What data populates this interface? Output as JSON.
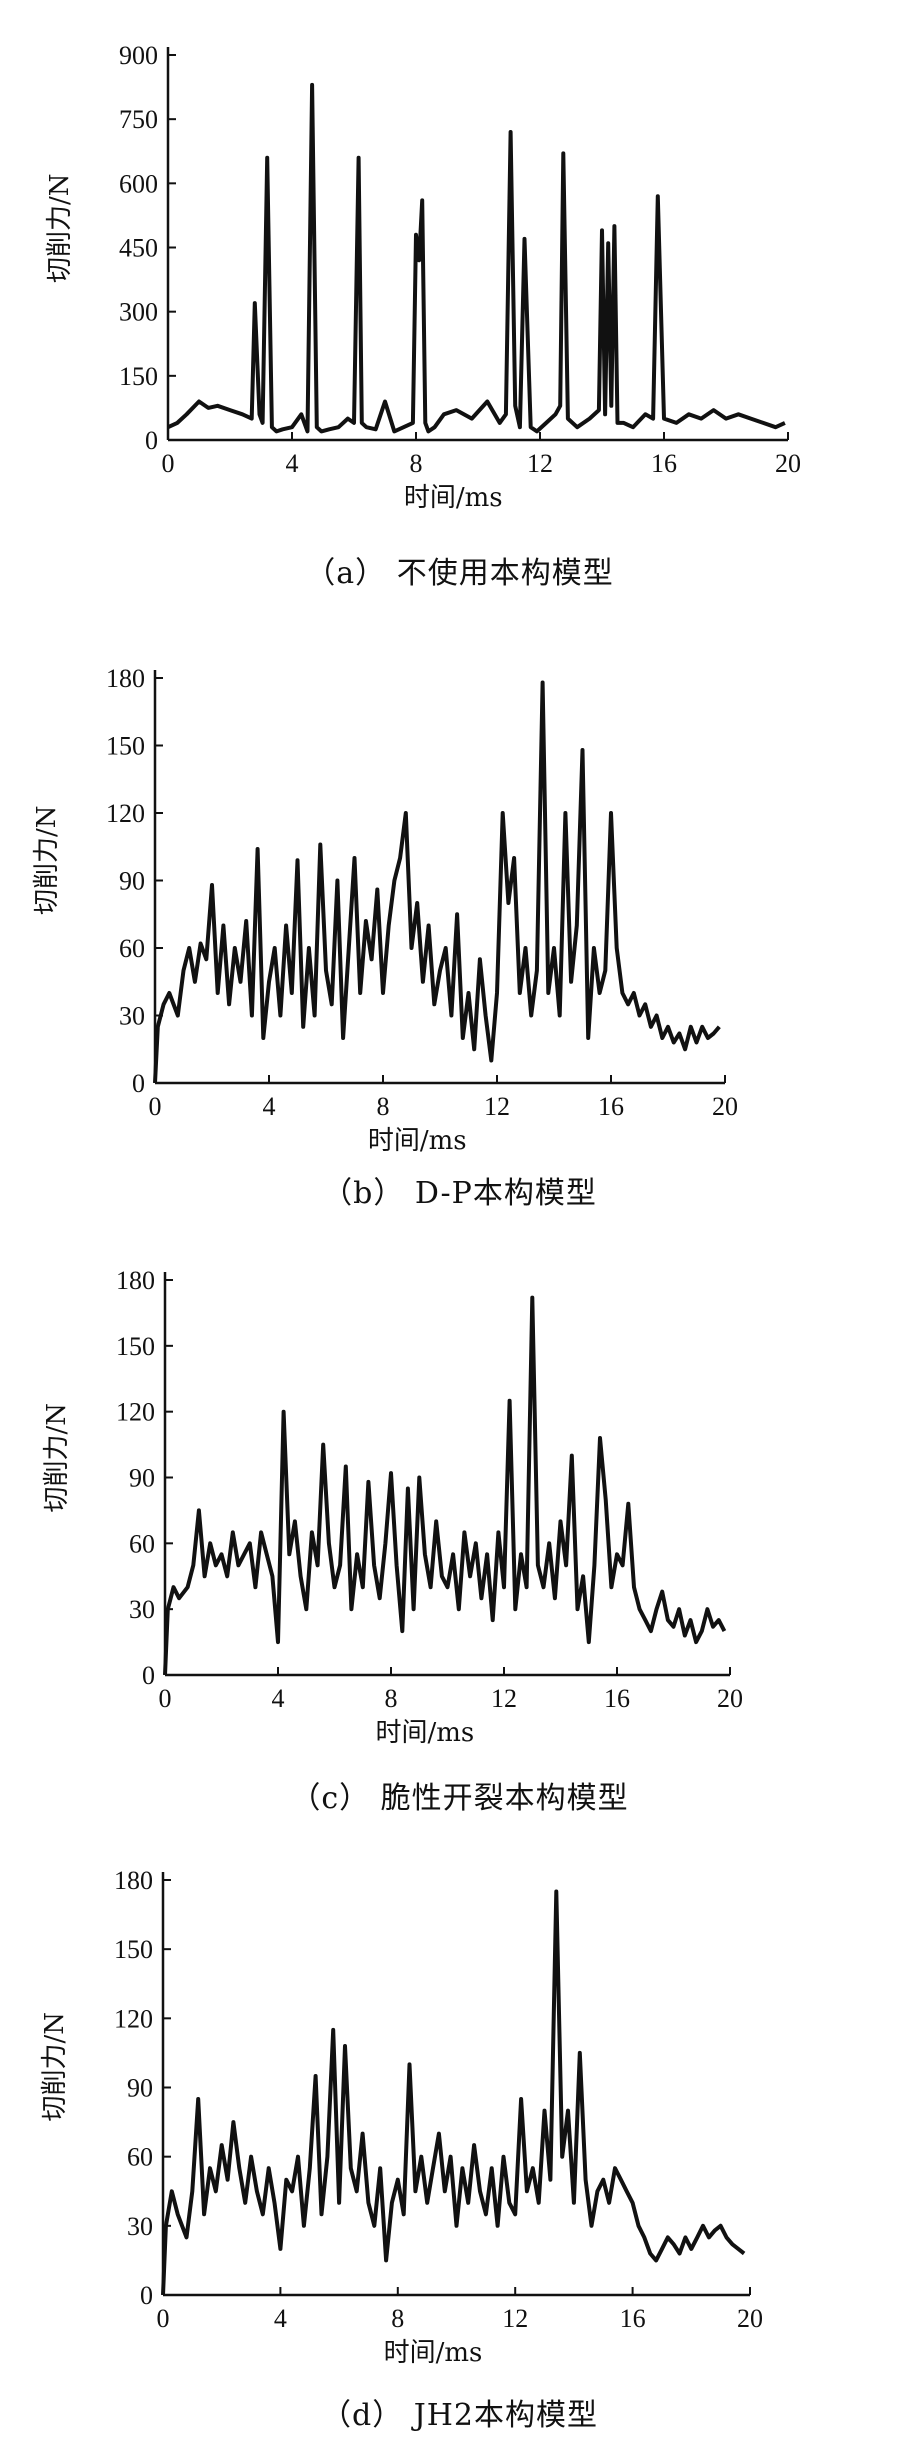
{
  "chart_data": [
    {
      "type": "line",
      "caption": "（a） 不使用本构模型",
      "xlabel": "时间/ms",
      "ylabel": "切削力/N",
      "xlim": [
        0,
        20
      ],
      "ylim": [
        0,
        900
      ],
      "xticks": [
        "0",
        "4",
        "8",
        "12",
        "16",
        "20"
      ],
      "yticks": [
        "0",
        "150",
        "300",
        "450",
        "600",
        "750",
        "900"
      ],
      "series": [
        {
          "x": [
            0,
            0.3,
            0.6,
            1.0,
            1.3,
            1.6,
            2.0,
            2.4,
            2.7,
            2.8,
            2.95,
            3.05,
            3.2,
            3.35,
            3.5,
            3.7,
            4.0,
            4.3,
            4.5,
            4.65,
            4.8,
            4.95,
            5.2,
            5.5,
            5.8,
            6.0,
            6.15,
            6.25,
            6.4,
            6.7,
            7.0,
            7.3,
            7.6,
            7.9,
            8.0,
            8.1,
            8.2,
            8.3,
            8.4,
            8.6,
            8.9,
            9.3,
            9.8,
            10.3,
            10.7,
            10.9,
            11.05,
            11.2,
            11.35,
            11.5,
            11.7,
            11.9,
            12.2,
            12.5,
            12.65,
            12.75,
            12.9,
            13.2,
            13.6,
            13.9,
            14.0,
            14.1,
            14.2,
            14.3,
            14.4,
            14.5,
            14.7,
            15.0,
            15.4,
            15.65,
            15.8,
            16.0,
            16.4,
            16.8,
            17.2,
            17.6,
            18.0,
            18.4,
            18.8,
            19.2,
            19.6,
            19.9
          ],
          "y": [
            30,
            40,
            60,
            90,
            75,
            80,
            70,
            60,
            50,
            320,
            60,
            40,
            660,
            30,
            20,
            25,
            30,
            60,
            20,
            830,
            30,
            20,
            25,
            30,
            50,
            40,
            660,
            40,
            30,
            25,
            90,
            20,
            30,
            40,
            480,
            420,
            560,
            40,
            20,
            30,
            60,
            70,
            50,
            90,
            40,
            60,
            720,
            80,
            30,
            470,
            30,
            20,
            40,
            60,
            80,
            670,
            50,
            30,
            50,
            70,
            490,
            60,
            460,
            80,
            500,
            40,
            40,
            30,
            60,
            50,
            570,
            50,
            40,
            60,
            50,
            70,
            50,
            60,
            50,
            40,
            30,
            40
          ]
        }
      ]
    },
    {
      "type": "line",
      "caption": "（b） D-P本构模型",
      "xlabel": "时间/ms",
      "ylabel": "切削力/N",
      "xlim": [
        0,
        20
      ],
      "ylim": [
        0,
        180
      ],
      "xticks": [
        "0",
        "4",
        "8",
        "12",
        "16",
        "20"
      ],
      "yticks": [
        "0",
        "30",
        "60",
        "90",
        "120",
        "150",
        "180"
      ],
      "series": [
        {
          "x": [
            0,
            0.1,
            0.3,
            0.5,
            0.8,
            1.0,
            1.2,
            1.4,
            1.6,
            1.8,
            2.0,
            2.2,
            2.4,
            2.6,
            2.8,
            3.0,
            3.2,
            3.4,
            3.6,
            3.8,
            4.0,
            4.2,
            4.4,
            4.6,
            4.8,
            5.0,
            5.2,
            5.4,
            5.6,
            5.8,
            6.0,
            6.2,
            6.4,
            6.6,
            6.8,
            7.0,
            7.2,
            7.4,
            7.6,
            7.8,
            8.0,
            8.2,
            8.4,
            8.6,
            8.8,
            9.0,
            9.2,
            9.4,
            9.6,
            9.8,
            10.0,
            10.2,
            10.4,
            10.6,
            10.8,
            11.0,
            11.2,
            11.4,
            11.6,
            11.8,
            12.0,
            12.2,
            12.4,
            12.6,
            12.8,
            13.0,
            13.2,
            13.4,
            13.6,
            13.8,
            14.0,
            14.2,
            14.4,
            14.6,
            14.8,
            15.0,
            15.2,
            15.4,
            15.6,
            15.8,
            16.0,
            16.2,
            16.4,
            16.6,
            16.8,
            17.0,
            17.2,
            17.4,
            17.6,
            17.8,
            18.0,
            18.2,
            18.4,
            18.6,
            18.8,
            19.0,
            19.2,
            19.4,
            19.6,
            19.8
          ],
          "y": [
            0,
            25,
            35,
            40,
            30,
            50,
            60,
            45,
            62,
            55,
            88,
            40,
            70,
            35,
            60,
            45,
            72,
            30,
            104,
            20,
            45,
            60,
            30,
            70,
            40,
            99,
            25,
            60,
            30,
            106,
            50,
            35,
            90,
            20,
            60,
            100,
            40,
            72,
            55,
            86,
            40,
            70,
            90,
            100,
            120,
            60,
            80,
            45,
            70,
            35,
            50,
            60,
            30,
            75,
            20,
            40,
            15,
            55,
            30,
            10,
            40,
            120,
            80,
            100,
            40,
            60,
            30,
            50,
            178,
            40,
            60,
            30,
            120,
            45,
            70,
            148,
            20,
            60,
            40,
            50,
            120,
            60,
            40,
            35,
            40,
            30,
            35,
            25,
            30,
            20,
            25,
            18,
            22,
            15,
            25,
            18,
            25,
            20,
            22,
            25
          ]
        }
      ]
    },
    {
      "type": "line",
      "caption": "（c） 脆性开裂本构模型",
      "xlabel": "时间/ms",
      "ylabel": "切削力/N",
      "xlim": [
        0,
        20
      ],
      "ylim": [
        0,
        180
      ],
      "xticks": [
        "0",
        "4",
        "8",
        "12",
        "16",
        "20"
      ],
      "yticks": [
        "0",
        "30",
        "60",
        "90",
        "120",
        "150",
        "180"
      ],
      "series": [
        {
          "x": [
            0,
            0.1,
            0.3,
            0.5,
            0.8,
            1.0,
            1.2,
            1.4,
            1.6,
            1.8,
            2.0,
            2.2,
            2.4,
            2.6,
            2.8,
            3.0,
            3.2,
            3.4,
            3.6,
            3.8,
            4.0,
            4.2,
            4.4,
            4.6,
            4.8,
            5.0,
            5.2,
            5.4,
            5.6,
            5.8,
            6.0,
            6.2,
            6.4,
            6.6,
            6.8,
            7.0,
            7.2,
            7.4,
            7.6,
            7.8,
            8.0,
            8.2,
            8.4,
            8.6,
            8.8,
            9.0,
            9.2,
            9.4,
            9.6,
            9.8,
            10.0,
            10.2,
            10.4,
            10.6,
            10.8,
            11.0,
            11.2,
            11.4,
            11.6,
            11.8,
            12.0,
            12.2,
            12.4,
            12.6,
            12.8,
            13.0,
            13.2,
            13.4,
            13.6,
            13.8,
            14.0,
            14.2,
            14.4,
            14.6,
            14.8,
            15.0,
            15.2,
            15.4,
            15.6,
            15.8,
            16.0,
            16.2,
            16.4,
            16.6,
            16.8,
            17.0,
            17.2,
            17.4,
            17.6,
            17.8,
            18.0,
            18.2,
            18.4,
            18.6,
            18.8,
            19.0,
            19.2,
            19.4,
            19.6,
            19.8
          ],
          "y": [
            0,
            30,
            40,
            35,
            40,
            50,
            75,
            45,
            60,
            50,
            55,
            45,
            65,
            50,
            55,
            60,
            40,
            65,
            55,
            45,
            15,
            120,
            55,
            70,
            45,
            30,
            65,
            50,
            105,
            60,
            40,
            50,
            95,
            30,
            55,
            40,
            88,
            50,
            35,
            60,
            92,
            50,
            20,
            85,
            30,
            90,
            55,
            40,
            70,
            45,
            40,
            55,
            30,
            65,
            45,
            60,
            35,
            55,
            25,
            65,
            40,
            125,
            30,
            55,
            40,
            172,
            50,
            40,
            60,
            35,
            70,
            50,
            100,
            30,
            45,
            15,
            50,
            108,
            80,
            40,
            55,
            50,
            78,
            40,
            30,
            25,
            20,
            30,
            38,
            25,
            22,
            30,
            18,
            25,
            15,
            20,
            30,
            22,
            25,
            20
          ]
        }
      ]
    },
    {
      "type": "line",
      "caption": "（d） JH2本构模型",
      "xlabel": "时间/ms",
      "ylabel": "切削力/N",
      "xlim": [
        0,
        20
      ],
      "ylim": [
        0,
        180
      ],
      "xticks": [
        "0",
        "4",
        "8",
        "12",
        "16",
        "20"
      ],
      "yticks": [
        "0",
        "30",
        "60",
        "90",
        "120",
        "150",
        "180"
      ],
      "series": [
        {
          "x": [
            0,
            0.1,
            0.3,
            0.5,
            0.8,
            1.0,
            1.2,
            1.4,
            1.6,
            1.8,
            2.0,
            2.2,
            2.4,
            2.6,
            2.8,
            3.0,
            3.2,
            3.4,
            3.6,
            3.8,
            4.0,
            4.2,
            4.4,
            4.6,
            4.8,
            5.0,
            5.2,
            5.4,
            5.6,
            5.8,
            6.0,
            6.2,
            6.4,
            6.6,
            6.8,
            7.0,
            7.2,
            7.4,
            7.6,
            7.8,
            8.0,
            8.2,
            8.4,
            8.6,
            8.8,
            9.0,
            9.2,
            9.4,
            9.6,
            9.8,
            10.0,
            10.2,
            10.4,
            10.6,
            10.8,
            11.0,
            11.2,
            11.4,
            11.6,
            11.8,
            12.0,
            12.2,
            12.4,
            12.6,
            12.8,
            13.0,
            13.2,
            13.4,
            13.6,
            13.8,
            14.0,
            14.2,
            14.4,
            14.6,
            14.8,
            15.0,
            15.2,
            15.4,
            15.6,
            15.8,
            16.0,
            16.2,
            16.4,
            16.6,
            16.8,
            17.0,
            17.2,
            17.4,
            17.6,
            17.8,
            18.0,
            18.2,
            18.4,
            18.6,
            18.8,
            19.0,
            19.2,
            19.4,
            19.6,
            19.8
          ],
          "y": [
            0,
            30,
            45,
            35,
            25,
            45,
            85,
            35,
            55,
            45,
            65,
            50,
            75,
            55,
            40,
            60,
            45,
            35,
            55,
            40,
            20,
            50,
            45,
            60,
            30,
            55,
            95,
            35,
            60,
            115,
            40,
            108,
            55,
            45,
            70,
            40,
            30,
            55,
            15,
            40,
            50,
            35,
            100,
            45,
            60,
            40,
            55,
            70,
            45,
            60,
            30,
            55,
            40,
            65,
            45,
            35,
            55,
            30,
            60,
            40,
            35,
            85,
            45,
            55,
            40,
            80,
            50,
            175,
            60,
            80,
            40,
            105,
            50,
            30,
            45,
            50,
            40,
            55,
            50,
            45,
            40,
            30,
            25,
            18,
            15,
            20,
            25,
            22,
            18,
            25,
            20,
            25,
            30,
            25,
            28,
            30,
            25,
            22,
            20,
            18
          ]
        }
      ]
    }
  ]
}
